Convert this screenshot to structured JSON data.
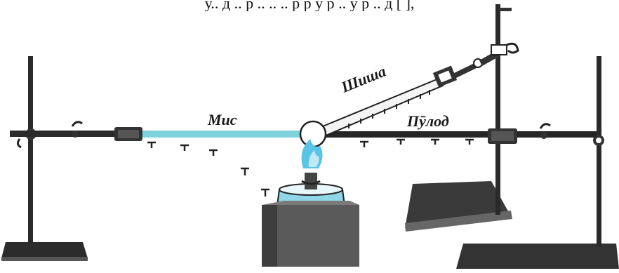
{
  "caption_fragment": "у.. д .. р .. .. .. р р у р .. у р .. д [ ],",
  "labels": {
    "copper": "Мис",
    "glass": "Шиша",
    "steel": "Пӯлод"
  },
  "colors": {
    "copper_rod": "#7fd3dc",
    "flame": "#59c3e8",
    "dish_liquid": "#8fd6e8",
    "metal": "#222222"
  }
}
